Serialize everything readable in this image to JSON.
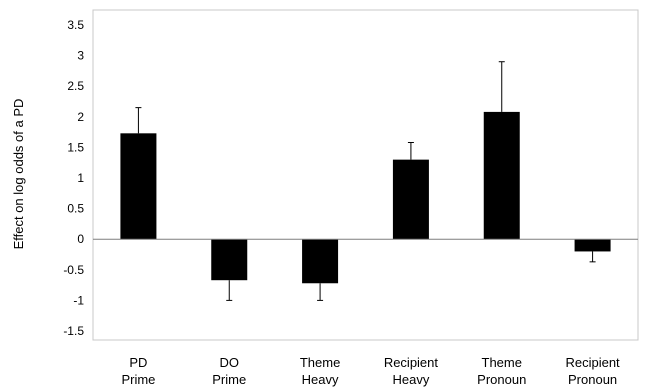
{
  "chart_data": {
    "type": "bar",
    "title": "",
    "ylabel": "Effect on log odds of a PD",
    "xlabel": "",
    "ylim": [
      -1.5,
      3.5
    ],
    "yticks": [
      3.5,
      3,
      2.5,
      2,
      1.5,
      1,
      0.5,
      0,
      -0.5,
      -1,
      -1.5
    ],
    "grid": false,
    "legend": "none",
    "bar_color": "#000000",
    "categories": [
      [
        "PD",
        "Prime"
      ],
      [
        "DO",
        "Prime"
      ],
      [
        "Theme",
        "Heavy"
      ],
      [
        "Recipient",
        "Heavy"
      ],
      [
        "Theme",
        "Pronoun"
      ],
      [
        "Recipient",
        "Pronoun"
      ]
    ],
    "values": [
      1.73,
      -0.67,
      -0.72,
      1.3,
      2.08,
      -0.2
    ],
    "error_upper": [
      2.15,
      -1.0,
      -1.0,
      1.58,
      2.9,
      -0.37
    ]
  }
}
